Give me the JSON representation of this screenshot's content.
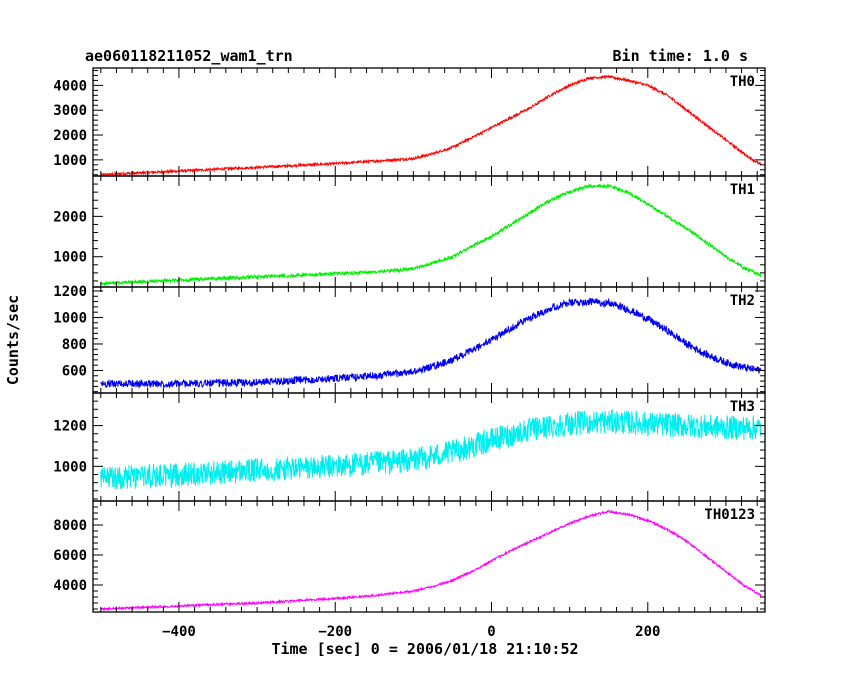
{
  "header": {
    "title": "ae060118211052_wam1_trn",
    "bin_time": "Bin time: 1.0 s"
  },
  "chart_data": {
    "type": "line",
    "xlabel": "Time [sec] 0 = 2006/01/18 21:10:52",
    "ylabel": "Counts/sec",
    "xlim": [
      -510,
      350
    ],
    "x_ticks": [
      -400,
      -200,
      0,
      200
    ],
    "x_tick_labels": [
      "−400",
      "−200",
      "0",
      "200"
    ],
    "grid": false,
    "panels": [
      {
        "name": "TH0",
        "color": "#ff0000",
        "ylim": [
          350,
          4700
        ],
        "y_ticks": [
          1000,
          2000,
          3000,
          4000
        ],
        "y_tick_labels": [
          "1000",
          "2000",
          "3000",
          "4000"
        ],
        "noise": 50,
        "x": [
          -500,
          -400,
          -300,
          -200,
          -150,
          -100,
          -75,
          -50,
          -25,
          0,
          25,
          50,
          75,
          100,
          125,
          150,
          175,
          200,
          225,
          250,
          275,
          300,
          325,
          345
        ],
        "y": [
          400,
          550,
          700,
          850,
          950,
          1050,
          1250,
          1500,
          1900,
          2300,
          2700,
          3100,
          3600,
          4000,
          4300,
          4350,
          4200,
          4000,
          3600,
          3000,
          2400,
          1800,
          1200,
          800
        ]
      },
      {
        "name": "TH1",
        "color": "#00ee00",
        "ylim": [
          250,
          3000
        ],
        "y_ticks": [
          1000,
          2000
        ],
        "y_tick_labels": [
          "1000",
          "2000"
        ],
        "noise": 40,
        "x": [
          -500,
          -400,
          -300,
          -200,
          -150,
          -100,
          -75,
          -50,
          -25,
          0,
          25,
          50,
          75,
          100,
          125,
          150,
          175,
          200,
          225,
          250,
          275,
          300,
          325,
          345
        ],
        "y": [
          330,
          420,
          500,
          580,
          620,
          700,
          850,
          1000,
          1250,
          1500,
          1800,
          2100,
          2400,
          2600,
          2750,
          2750,
          2600,
          2300,
          2000,
          1700,
          1350,
          1000,
          700,
          550
        ]
      },
      {
        "name": "TH2",
        "color": "#0000ee",
        "ylim": [
          430,
          1230
        ],
        "y_ticks": [
          600,
          800,
          1000,
          1200
        ],
        "y_tick_labels": [
          "600",
          "800",
          "1000",
          "1200"
        ],
        "noise": 28,
        "x": [
          -500,
          -400,
          -300,
          -200,
          -150,
          -100,
          -75,
          -50,
          -25,
          0,
          25,
          50,
          75,
          100,
          125,
          150,
          175,
          200,
          225,
          250,
          275,
          300,
          325,
          345
        ],
        "y": [
          500,
          500,
          510,
          540,
          560,
          590,
          630,
          680,
          750,
          830,
          920,
          1000,
          1070,
          1110,
          1120,
          1110,
          1060,
          990,
          900,
          800,
          720,
          660,
          620,
          600
        ]
      },
      {
        "name": "TH3",
        "color": "#00eeee",
        "ylim": [
          830,
          1360
        ],
        "y_ticks": [
          1000,
          1200
        ],
        "y_tick_labels": [
          "1000",
          "1200"
        ],
        "noise": 60,
        "x": [
          -500,
          -400,
          -300,
          -200,
          -100,
          -50,
          0,
          50,
          100,
          150,
          200,
          250,
          300,
          345
        ],
        "y": [
          940,
          960,
          980,
          1000,
          1030,
          1070,
          1130,
          1180,
          1210,
          1220,
          1210,
          1200,
          1190,
          1190
        ]
      },
      {
        "name": "TH0123",
        "color": "#ff00ff",
        "ylim": [
          2200,
          9600
        ],
        "y_ticks": [
          4000,
          6000,
          8000
        ],
        "y_tick_labels": [
          "4000",
          "6000",
          "8000"
        ],
        "noise": 70,
        "x": [
          -500,
          -400,
          -300,
          -200,
          -150,
          -100,
          -75,
          -50,
          -25,
          0,
          25,
          50,
          75,
          100,
          125,
          150,
          175,
          200,
          225,
          250,
          275,
          300,
          325,
          345
        ],
        "y": [
          2400,
          2600,
          2800,
          3100,
          3300,
          3600,
          3900,
          4300,
          4900,
          5600,
          6300,
          6900,
          7500,
          8100,
          8600,
          8900,
          8700,
          8300,
          7700,
          6900,
          5900,
          4900,
          3900,
          3300
        ]
      }
    ]
  }
}
